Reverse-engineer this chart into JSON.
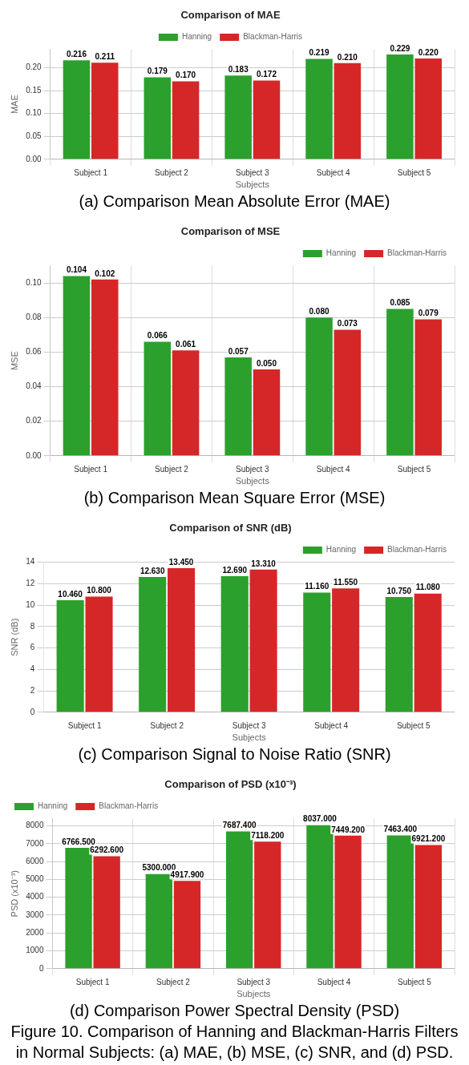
{
  "chart_data": [
    {
      "type": "bar",
      "title": "Comparison of MAE",
      "xlabel": "Subjects",
      "ylabel": "MAE",
      "categories": [
        "Subject 1",
        "Subject 2",
        "Subject 3",
        "Subject 4",
        "Subject 5"
      ],
      "series": [
        {
          "name": "Hanning",
          "color": "#2ca02c",
          "values": [
            0.216,
            0.179,
            0.183,
            0.219,
            0.229
          ],
          "value_labels": [
            "0.216",
            "0.179",
            "0.183",
            "0.219",
            "0.229"
          ]
        },
        {
          "name": "Blackman-Harris",
          "color": "#d62728",
          "values": [
            0.211,
            0.17,
            0.172,
            0.21,
            0.22
          ],
          "value_labels": [
            "0.211",
            "0.170",
            "0.172",
            "0.210",
            "0.220"
          ]
        }
      ],
      "ylim": [
        0,
        0.24
      ],
      "yticks": [
        {
          "value": 0,
          "label": "0.00"
        },
        0.05,
        {
          "value": 0.1,
          "label": "0.10"
        },
        0.15,
        {
          "value": 0.2,
          "label": "0.20"
        }
      ],
      "grid": true,
      "legend": "top",
      "annotations": [
        "(a) Comparison Mean Absolute Error (MAE)"
      ]
    },
    {
      "type": "bar",
      "title": "Comparison of MSE",
      "xlabel": "Subjects",
      "ylabel": "MSE",
      "categories": [
        "Subject 1",
        "Subject 2",
        "Subject 3",
        "Subject 4",
        "Subject 5"
      ],
      "series": [
        {
          "name": "Hanning",
          "color": "#2ca02c",
          "values": [
            0.104,
            0.066,
            0.057,
            0.08,
            0.085
          ],
          "value_labels": [
            "0.104",
            "0.066",
            "0.057",
            "0.080",
            "0.085"
          ]
        },
        {
          "name": "Blackman-Harris",
          "color": "#d62728",
          "values": [
            0.102,
            0.061,
            0.05,
            0.073,
            0.079
          ],
          "value_labels": [
            "0.102",
            "0.061",
            "0.050",
            "0.073",
            "0.079"
          ]
        }
      ],
      "ylim": [
        0,
        0.11
      ],
      "yticks": [
        {
          "value": 0,
          "label": "0.00"
        },
        {
          "value": 0.02,
          "label": "0.02"
        },
        {
          "value": 0.04,
          "label": "0.04"
        },
        {
          "value": 0.06,
          "label": "0.06"
        },
        {
          "value": 0.08,
          "label": "0.08"
        },
        {
          "value": 0.1,
          "label": "0.10"
        }
      ],
      "grid": true,
      "legend": "top right",
      "annotations": [
        "(b) Comparison Mean Square Error (MSE)"
      ]
    },
    {
      "type": "bar",
      "title": "Comparison of SNR (dB)",
      "xlabel": "Subjects",
      "ylabel": "SNR (dB)",
      "categories": [
        "Subject 1",
        "Subject 2",
        "Subject 3",
        "Subject 4",
        "Subject 5"
      ],
      "series": [
        {
          "name": "Hanning",
          "color": "#2ca02c",
          "values": [
            10.46,
            12.63,
            12.69,
            11.16,
            10.75
          ],
          "value_labels": [
            "10.460",
            "12.630",
            "12.690",
            "11.160",
            "10.750"
          ]
        },
        {
          "name": "Blackman-Harris",
          "color": "#d62728",
          "values": [
            10.8,
            13.45,
            13.31,
            11.55,
            11.08
          ],
          "value_labels": [
            "10.800",
            "13.450",
            "13.310",
            "11.550",
            "11.080"
          ]
        }
      ],
      "ylim": [
        0,
        14
      ],
      "yticks": [
        0,
        2,
        4,
        6,
        8,
        10,
        12,
        14
      ],
      "grid": "y",
      "legend": "top right",
      "annotations": [
        "(c) Comparison Signal to Noise Ratio (SNR)"
      ]
    },
    {
      "type": "bar",
      "title": "Comparison of PSD (x10⁻³)",
      "xlabel": "Subjects",
      "ylabel": "PSD (x10⁻³)",
      "categories": [
        "Subject 1",
        "Subject 2",
        "Subject 3",
        "Subject 4",
        "Subject 5"
      ],
      "series": [
        {
          "name": "Hanning",
          "color": "#2ca02c",
          "values": [
            6766.5,
            5300,
            7687.4,
            8037,
            7463.4
          ],
          "value_labels": [
            "6766.500",
            "5300.000",
            "7687.400",
            "8037.000",
            "7463.400"
          ]
        },
        {
          "name": "Blackman-Harris",
          "color": "#d62728",
          "values": [
            6292.6,
            4917.9,
            7118.2,
            7449.2,
            6921.2
          ],
          "value_labels": [
            "6292.600",
            "4917.900",
            "7118.200",
            "7449.200",
            "6921.200"
          ]
        }
      ],
      "ylim": [
        0,
        8400
      ],
      "yticks": [
        0,
        1000,
        2000,
        3000,
        4000,
        5000,
        6000,
        7000,
        8000
      ],
      "grid": true,
      "legend": "top left",
      "annotations": [
        "(d) Comparison Power Spectral Density (PSD)",
        "Figure 10. Comparison of Hanning and Blackman-Harris Filters in Normal Subjects: (a) MAE, (b) MSE, (c) SNR, and (d) PSD."
      ]
    }
  ]
}
